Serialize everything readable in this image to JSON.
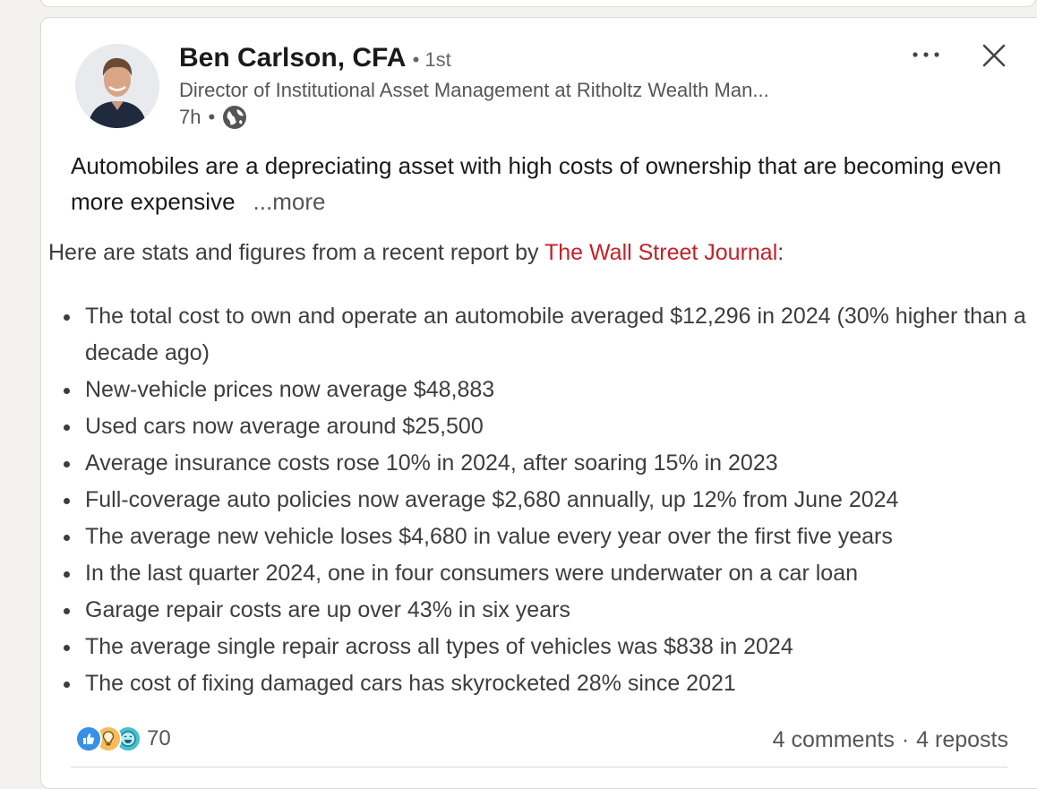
{
  "author": {
    "name": "Ben Carlson, CFA",
    "connection_degree": "• 1st",
    "headline": "Director of Institutional Asset Management at Ritholtz Wealth Man...",
    "time_ago": "7h",
    "meta_separator": "•",
    "visibility_icon": "globe-icon"
  },
  "actions": {
    "more_icon": "ellipsis-icon",
    "close_icon": "close-icon"
  },
  "post": {
    "text": "Automobiles are a depreciating asset with high costs of ownership that are becoming even more expensive",
    "see_more": "...more",
    "intro_before": "Here are stats and figures from a recent report by ",
    "intro_link": "The Wall Street Journal",
    "intro_after": ":",
    "bullets": [
      "The total cost to own and operate an automobile averaged $12,296 in 2024 (30% higher than a decade ago)",
      "New-vehicle prices now average $48,883",
      "Used cars now average around $25,500",
      "Average insurance costs rose 10% in 2024, after soaring 15% in 2023",
      "Full-coverage auto policies now average $2,680 annually, up 12% from June 2024",
      "The average new vehicle loses $4,680 in value every year over the first five years",
      "In the last quarter 2024, one in four consumers were underwater on a car loan",
      "Garage repair costs are up over 43% in six years",
      "The average single repair across all types of vehicles was $838 in 2024",
      "The cost of fixing damaged cars has skyrocketed 28% since 2021"
    ]
  },
  "social": {
    "reaction_icons": [
      "like-icon",
      "insightful-icon",
      "funny-icon"
    ],
    "reaction_count": "70",
    "comments": "4 comments",
    "separator": "·",
    "reposts": "4 reposts"
  },
  "colors": {
    "link_red": "#c4202a",
    "like_blue": "#378fe9",
    "insightful_yellow": "#f5bb5c",
    "funny_teal": "#44bfd3"
  }
}
